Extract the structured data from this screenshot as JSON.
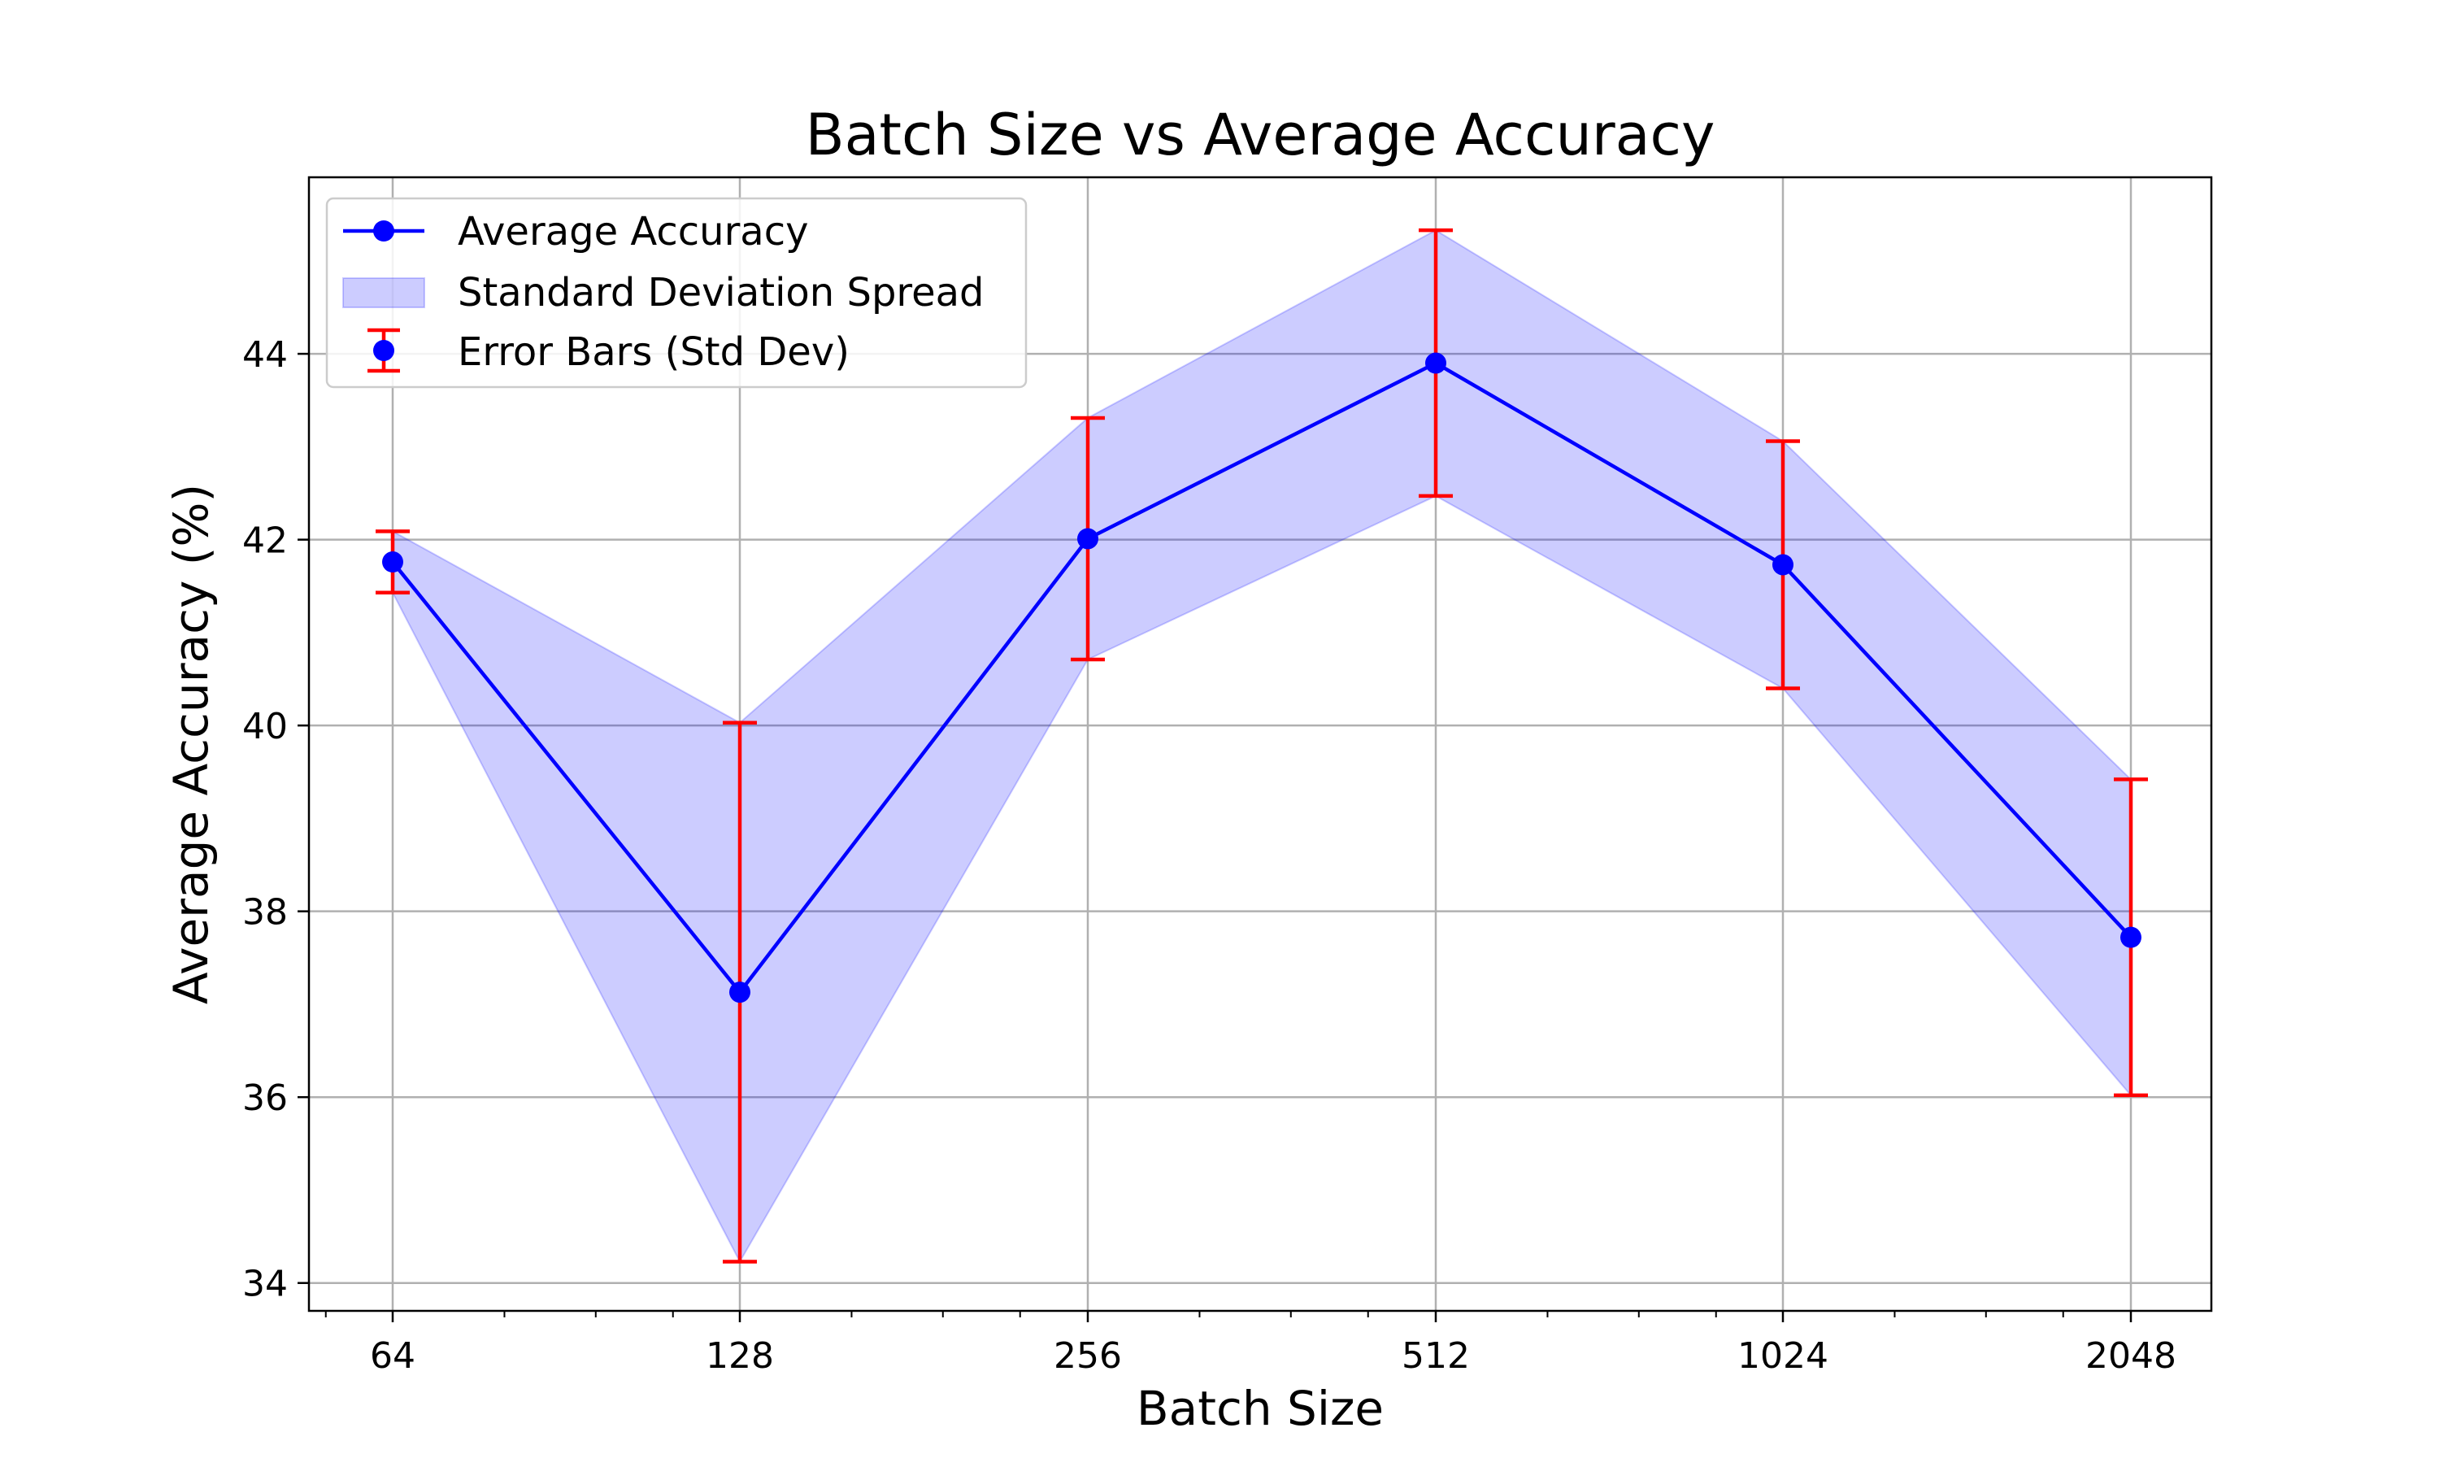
{
  "chart_data": {
    "type": "line",
    "title": "Batch Size vs Average Accuracy",
    "xlabel": "Batch Size",
    "ylabel": "Average Accuracy (%)",
    "x_scale": "log2",
    "x": [
      64,
      128,
      256,
      512,
      1024,
      2048
    ],
    "x_tick_labels": [
      "64",
      "128",
      "256",
      "512",
      "1024",
      "2048"
    ],
    "y_ticks": [
      34,
      36,
      38,
      40,
      42,
      44
    ],
    "y_tick_labels": [
      "34",
      "36",
      "38",
      "40",
      "42",
      "44"
    ],
    "ylim": [
      33.7,
      45.9
    ],
    "grid": true,
    "legend_position": "top-left",
    "series": [
      {
        "name": "Average Accuracy",
        "kind": "line-marker",
        "color": "#0000ff",
        "values": [
          41.76,
          37.13,
          42.01,
          43.9,
          41.73,
          37.72
        ]
      }
    ],
    "std_dev": [
      0.33,
      2.9,
      1.3,
      1.43,
      1.33,
      1.7
    ],
    "bands": [
      {
        "name": "Standard Deviation Spread",
        "color": "#0000ff",
        "opacity": 0.2
      }
    ],
    "error_bars": [
      {
        "name": "Error Bars (Std Dev)",
        "color": "#ff0000"
      }
    ]
  }
}
